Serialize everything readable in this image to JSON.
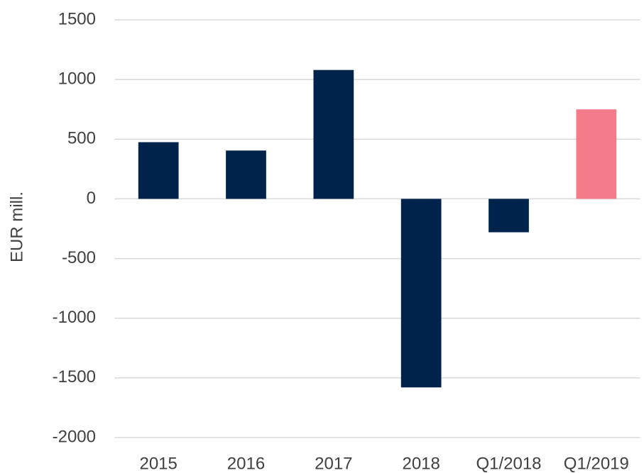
{
  "chart_data": {
    "type": "bar",
    "y_label": "EUR mill.",
    "categories": [
      "2015",
      "2016",
      "2017",
      "2018",
      "Q1/2018",
      "Q1/2019"
    ],
    "values": [
      475,
      405,
      1080,
      -1580,
      -280,
      750
    ],
    "colors": [
      "#00234b",
      "#00234b",
      "#00234b",
      "#00234b",
      "#00234b",
      "#f47c8a"
    ],
    "ylim": [
      -2000,
      1500
    ],
    "yticks": [
      -2000,
      -1500,
      -1000,
      -500,
      0,
      500,
      1000,
      1500
    ],
    "grid": true
  }
}
